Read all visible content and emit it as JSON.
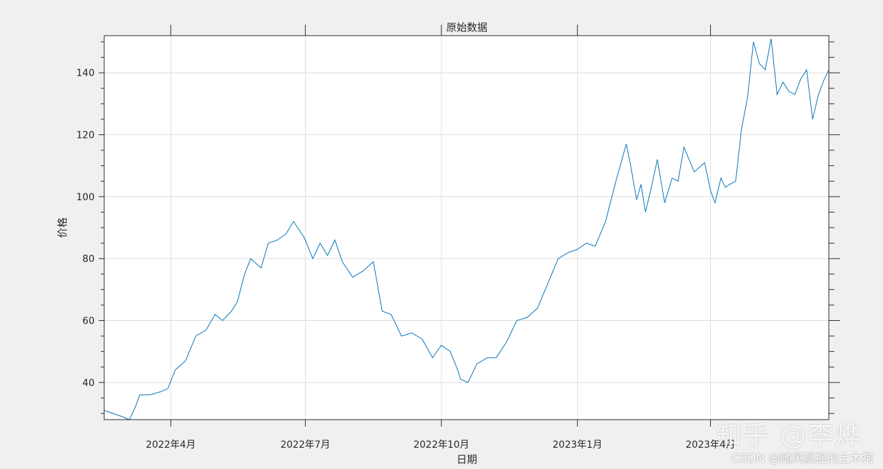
{
  "chart_data": {
    "type": "line",
    "title": "原始数据",
    "xlabel": "日期",
    "ylabel": "价格",
    "x_tick_labels": [
      "2022年4月",
      "2022年7月",
      "2022年10月",
      "2023年1月",
      "2023年4月"
    ],
    "y_tick_labels": [
      "40",
      "60",
      "80",
      "100",
      "120",
      "140"
    ],
    "ylim": [
      28,
      152
    ],
    "grid": true,
    "line_color": "#0072BD",
    "series": [
      {
        "x": [
          "2022-02-15",
          "2022-02-21",
          "2022-02-27",
          "2022-03-04",
          "2022-03-08",
          "2022-03-11",
          "2022-03-18",
          "2022-03-25",
          "2022-03-30",
          "2022-04-04",
          "2022-04-11",
          "2022-04-18",
          "2022-04-25",
          "2022-05-01",
          "2022-05-06",
          "2022-05-12",
          "2022-05-16",
          "2022-05-21",
          "2022-05-25",
          "2022-06-01",
          "2022-06-06",
          "2022-06-12",
          "2022-06-18",
          "2022-06-23",
          "2022-06-30",
          "2022-07-01",
          "2022-07-06",
          "2022-07-11",
          "2022-07-16",
          "2022-07-21",
          "2022-07-26",
          "2022-08-02",
          "2022-08-09",
          "2022-08-16",
          "2022-08-22",
          "2022-08-28",
          "2022-09-04",
          "2022-09-11",
          "2022-09-18",
          "2022-09-25",
          "2022-10-01",
          "2022-10-07",
          "2022-10-12",
          "2022-10-14",
          "2022-10-19",
          "2022-10-25",
          "2022-11-01",
          "2022-11-07",
          "2022-11-14",
          "2022-11-21",
          "2022-11-28",
          "2022-12-05",
          "2022-12-12",
          "2022-12-19",
          "2022-12-26",
          "2023-01-01",
          "2023-01-07",
          "2023-01-13",
          "2023-01-20",
          "2023-01-27",
          "2023-02-03",
          "2023-02-06",
          "2023-02-10",
          "2023-02-13",
          "2023-02-16",
          "2023-02-20",
          "2023-02-24",
          "2023-03-01",
          "2023-03-06",
          "2023-03-10",
          "2023-03-14",
          "2023-03-21",
          "2023-03-28",
          "2023-04-01",
          "2023-04-04",
          "2023-04-08",
          "2023-04-11",
          "2023-04-14",
          "2023-04-18",
          "2023-04-22",
          "2023-04-26",
          "2023-04-30",
          "2023-05-04",
          "2023-05-08",
          "2023-05-12",
          "2023-05-16",
          "2023-05-20",
          "2023-05-24",
          "2023-05-28",
          "2023-06-01",
          "2023-06-05",
          "2023-06-09",
          "2023-06-13",
          "2023-06-17",
          "2023-06-20"
        ],
        "y": [
          31,
          30,
          29,
          28,
          32,
          36,
          36,
          37,
          38,
          44,
          47,
          55,
          57,
          62,
          60,
          63,
          66,
          75,
          80,
          77,
          85,
          86,
          88,
          92,
          87,
          86,
          80,
          85,
          81,
          86,
          79,
          74,
          76,
          79,
          63,
          62,
          55,
          56,
          54,
          48,
          52,
          50,
          44,
          41,
          40,
          46,
          48,
          48,
          53,
          60,
          61,
          64,
          72,
          80,
          82,
          83,
          85,
          84,
          92,
          105,
          117,
          110,
          99,
          104,
          95,
          103,
          112,
          98,
          106,
          105,
          116,
          108,
          111,
          102,
          98,
          106,
          103,
          104,
          105,
          122,
          132,
          150,
          143,
          141,
          151,
          133,
          137,
          134,
          133,
          138,
          141,
          125,
          133,
          138,
          141
        ]
      }
    ]
  },
  "watermark": "知乎 @李烨",
  "credit": "CSDN @随风飘摇的土木狗"
}
